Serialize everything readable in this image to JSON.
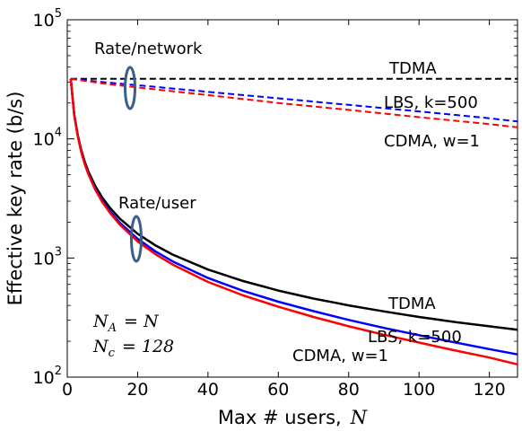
{
  "chart_data": {
    "type": "line",
    "xlabel": "Max # users,",
    "xlabel_var": "N",
    "ylabel": "Effective key rate (b/s)",
    "xlim": [
      0,
      128
    ],
    "ylim": [
      100,
      100000
    ],
    "yscale": "log",
    "x_ticks": [
      0,
      20,
      40,
      60,
      80,
      100,
      120
    ],
    "y_ticks": [
      {
        "value": 100,
        "base": "10",
        "exp": "2"
      },
      {
        "value": 1000,
        "base": "10",
        "exp": "3"
      },
      {
        "value": 10000,
        "base": "10",
        "exp": "4"
      },
      {
        "value": 100000,
        "base": "10",
        "exp": "5"
      }
    ],
    "grid": false,
    "series": [
      {
        "name": "TDMA",
        "group": "Rate/network",
        "color": "#000000",
        "style": "dashed",
        "x": [
          1,
          128
        ],
        "y": [
          32000,
          32000
        ]
      },
      {
        "name": "LBS, k=500",
        "group": "Rate/network",
        "color": "#0000ff",
        "style": "dashed",
        "x": [
          1,
          10,
          20,
          40,
          60,
          80,
          100,
          120,
          128
        ],
        "y": [
          32000,
          30000,
          28200,
          24800,
          21900,
          19300,
          17000,
          14900,
          14000
        ]
      },
      {
        "name": "CDMA, w=1",
        "group": "Rate/network",
        "color": "#ff0000",
        "style": "dashed",
        "x": [
          1,
          10,
          20,
          40,
          60,
          80,
          100,
          120,
          128
        ],
        "y": [
          32000,
          29200,
          27000,
          23300,
          20000,
          17500,
          15200,
          13300,
          12500
        ]
      },
      {
        "name": "TDMA",
        "group": "Rate/user",
        "color": "#000000",
        "style": "solid",
        "x": [
          1,
          2,
          3,
          4,
          5,
          6,
          8,
          10,
          12,
          15,
          20,
          25,
          30,
          40,
          50,
          60,
          70,
          80,
          90,
          100,
          110,
          120,
          128
        ],
        "y": [
          32000,
          16000,
          10700,
          8000,
          6400,
          5333,
          4000,
          3200,
          2667,
          2133,
          1600,
          1280,
          1067,
          800,
          640,
          533,
          457,
          400,
          356,
          320,
          291,
          267,
          250
        ]
      },
      {
        "name": "LBS, k=500",
        "group": "Rate/user",
        "color": "#0000ff",
        "style": "solid",
        "x": [
          1,
          2,
          3,
          4,
          5,
          6,
          8,
          10,
          12,
          15,
          20,
          25,
          30,
          40,
          50,
          60,
          70,
          80,
          90,
          100,
          110,
          120,
          128
        ],
        "y": [
          32000,
          15800,
          10500,
          7800,
          6200,
          5150,
          3800,
          3020,
          2500,
          1970,
          1450,
          1140,
          935,
          680,
          530,
          430,
          358,
          302,
          259,
          225,
          196,
          172,
          155
        ]
      },
      {
        "name": "CDMA, w=1",
        "group": "Rate/user",
        "color": "#ff0000",
        "style": "solid",
        "x": [
          1,
          2,
          3,
          4,
          5,
          6,
          8,
          10,
          12,
          15,
          20,
          25,
          30,
          40,
          50,
          60,
          70,
          80,
          90,
          100,
          110,
          120,
          128
        ],
        "y": [
          32000,
          15700,
          10400,
          7700,
          6100,
          5050,
          3720,
          2940,
          2420,
          1900,
          1380,
          1080,
          880,
          630,
          485,
          390,
          320,
          267,
          227,
          195,
          168,
          146,
          128
        ]
      }
    ],
    "annotations": {
      "rate_network": "Rate/network",
      "rate_user": "Rate/user",
      "tdma_top": "TDMA",
      "lbs_top": "LBS, k=500",
      "cdma_top": "CDMA, w=1",
      "tdma_bottom": "TDMA",
      "lbs_bottom": "LBS, k=500",
      "cdma_bottom": "CDMA, w=1",
      "param_na_lhs": "N",
      "param_na_sub": "A",
      "param_na_rhs": "= N",
      "param_nc_lhs": "N",
      "param_nc_sub": "c",
      "param_nc_rhs": "= 128"
    }
  }
}
